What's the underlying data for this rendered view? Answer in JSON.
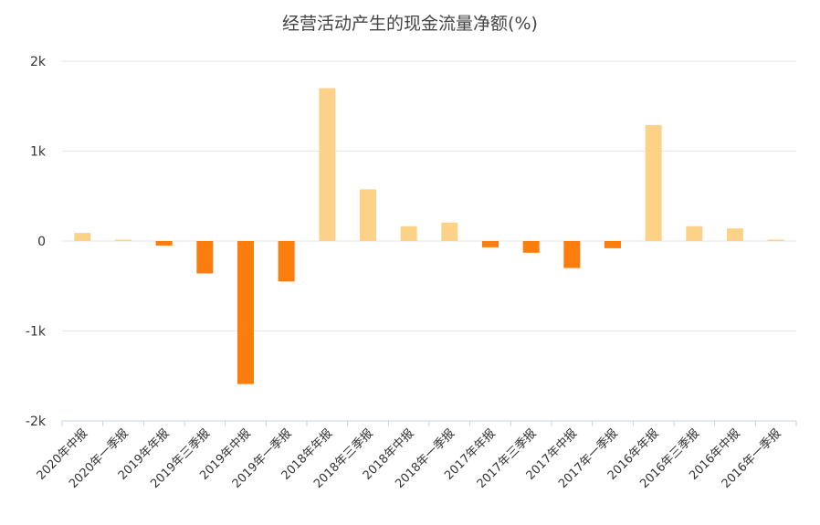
{
  "chart_data": {
    "type": "bar",
    "title": "经营活动产生的现金流量净额(%)",
    "xlabel": "",
    "ylabel": "",
    "ylim": [
      -2000,
      2000
    ],
    "yticks": [
      2000,
      1000,
      0,
      -1000,
      -2000
    ],
    "ytick_labels": [
      "2k",
      "1k",
      "0",
      "-1k",
      "-2k"
    ],
    "grid": true,
    "legend": "none",
    "colors": {
      "positive": "#fcd289",
      "negative": "#fb7d0e",
      "grid": "#e6e6e6",
      "axis": "#c8d4e8"
    },
    "categories": [
      "2020年中报",
      "2020年一季报",
      "2019年年报",
      "2019年三季报",
      "2019年中报",
      "2019年一季报",
      "2018年年报",
      "2018年三季报",
      "2018年中报",
      "2018年一季报",
      "2017年年报",
      "2017年三季报",
      "2017年中报",
      "2017年一季报",
      "2016年年报",
      "2016年三季报",
      "2016年中报",
      "2016年一季报"
    ],
    "values": [
      90,
      15,
      -50,
      -360,
      -1590,
      -450,
      1700,
      575,
      165,
      205,
      -70,
      -130,
      -300,
      -80,
      1290,
      165,
      140,
      15
    ]
  }
}
